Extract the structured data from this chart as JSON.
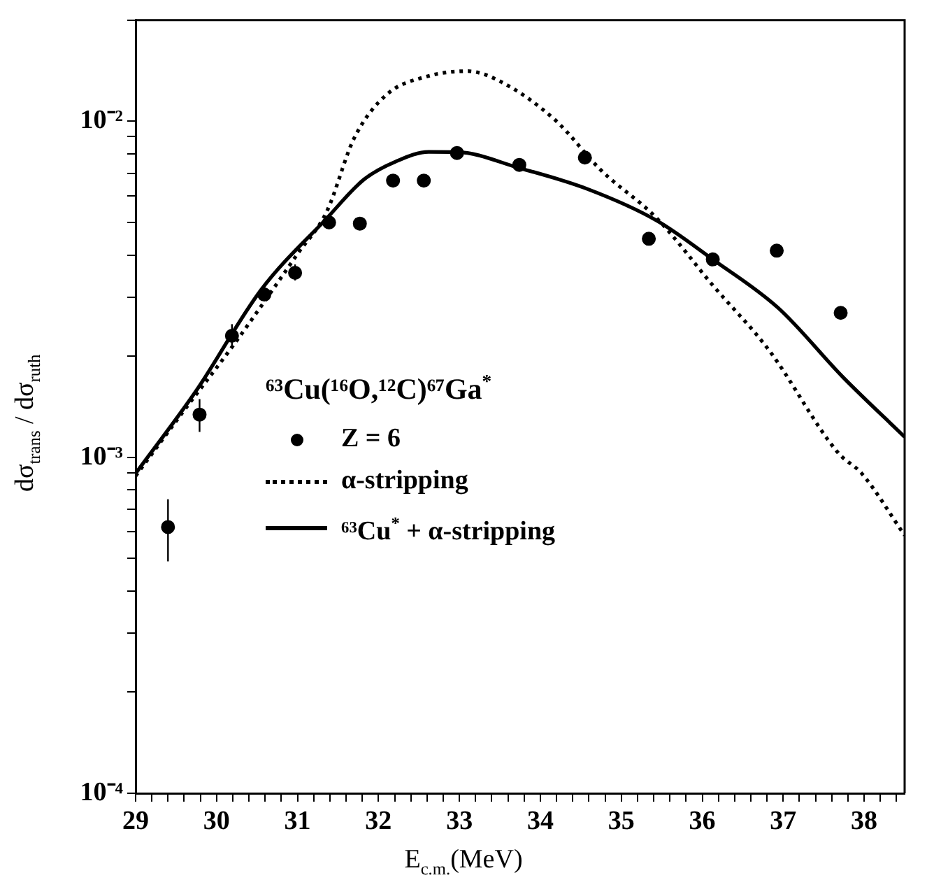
{
  "chart_data": {
    "type": "line",
    "xlabel": "E$_{c.m.}$(MeV)",
    "ylabel": "dσ$_{trans}$ / dσ$_{ruth}$",
    "legend_title": "⁶³Cu(¹⁶O,¹²C)⁶⁷Ga$^{*}$",
    "legend": "center",
    "grid": false,
    "log": "y",
    "xlim": [
      29,
      38.5
    ],
    "ylim": [
      0.0001,
      0.02
    ],
    "xticks": [
      29,
      {
        "value": 29.2,
        "label": null
      },
      {
        "value": 29.4,
        "label": null
      },
      {
        "value": 29.6,
        "label": null
      },
      {
        "value": 29.8,
        "label": null
      },
      30,
      {
        "value": 30.2,
        "label": null
      },
      {
        "value": 30.4,
        "label": null
      },
      {
        "value": 30.6,
        "label": null
      },
      {
        "value": 30.8,
        "label": null
      },
      31,
      {
        "value": 31.2,
        "label": null
      },
      {
        "value": 31.4,
        "label": null
      },
      {
        "value": 31.6,
        "label": null
      },
      {
        "value": 31.8,
        "label": null
      },
      32,
      {
        "value": 32.2,
        "label": null
      },
      {
        "value": 32.4,
        "label": null
      },
      {
        "value": 32.6,
        "label": null
      },
      {
        "value": 32.8,
        "label": null
      },
      33,
      {
        "value": 33.2,
        "label": null
      },
      {
        "value": 33.4,
        "label": null
      },
      {
        "value": 33.6,
        "label": null
      },
      {
        "value": 33.8,
        "label": null
      },
      34,
      {
        "value": 34.2,
        "label": null
      },
      {
        "value": 34.4,
        "label": null
      },
      {
        "value": 34.6,
        "label": null
      },
      {
        "value": 34.8,
        "label": null
      },
      35,
      {
        "value": 35.2,
        "label": null
      },
      {
        "value": 35.4,
        "label": null
      },
      {
        "value": 35.6,
        "label": null
      },
      {
        "value": 35.8,
        "label": null
      },
      36,
      {
        "value": 36.2,
        "label": null
      },
      {
        "value": 36.4,
        "label": null
      },
      {
        "value": 36.6,
        "label": null
      },
      {
        "value": 36.8,
        "label": null
      },
      37,
      {
        "value": 37.2,
        "label": null
      },
      {
        "value": 37.4,
        "label": null
      },
      {
        "value": 37.6,
        "label": null
      },
      {
        "value": 37.8,
        "label": null
      },
      38,
      {
        "value": 38.2,
        "label": null
      },
      {
        "value": 38.4,
        "label": null
      }
    ],
    "yticks": [
      {
        "value": 0.0001,
        "label": "10⁻⁴"
      },
      {
        "value": 0.0002,
        "label": null
      },
      {
        "value": 0.0003,
        "label": null
      },
      {
        "value": 0.0004,
        "label": null
      },
      {
        "value": 0.0005,
        "label": null
      },
      {
        "value": 0.0006,
        "label": null
      },
      {
        "value": 0.0007,
        "label": null
      },
      {
        "value": 0.0008,
        "label": null
      },
      {
        "value": 0.0009,
        "label": null
      },
      {
        "value": 0.001,
        "label": "10⁻³"
      },
      {
        "value": 0.002,
        "label": null
      },
      {
        "value": 0.003,
        "label": null
      },
      {
        "value": 0.004,
        "label": null
      },
      {
        "value": 0.005,
        "label": null
      },
      {
        "value": 0.006,
        "label": null
      },
      {
        "value": 0.007,
        "label": null
      },
      {
        "value": 0.008,
        "label": null
      },
      {
        "value": 0.009,
        "label": null
      },
      {
        "value": 0.01,
        "label": "10⁻²"
      },
      {
        "value": 0.02,
        "label": null
      }
    ],
    "series": [
      {
        "name": "Z = 6",
        "type": "scatter",
        "marker": "circle",
        "color": "#000000",
        "x": [
          29.4,
          29.79,
          30.19,
          30.59,
          30.97,
          31.39,
          31.77,
          32.18,
          32.56,
          32.97,
          33.74,
          34.55,
          35.34,
          36.13,
          36.92,
          37.71
        ],
        "values": [
          0.00062,
          0.00134,
          0.0023,
          0.00305,
          0.00354,
          0.005,
          0.00496,
          0.00666,
          0.00666,
          0.00805,
          0.00742,
          0.0078,
          0.00447,
          0.00388,
          0.00412,
          0.00269
        ],
        "errors": [
          [
            0.00049,
            0.00075
          ],
          [
            0.00119,
            0.00149
          ],
          [
            0.00216,
            0.00249
          ],
          [
            0.00292,
            0.00325
          ],
          [
            0.00336,
            0.00375
          ],
          null,
          null,
          null,
          null,
          null,
          null,
          null,
          null,
          null,
          null,
          null
        ]
      },
      {
        "name": "α-stripping",
        "line_style": "dotted",
        "color": "#000000",
        "x": [
          29,
          29.6,
          30.21,
          31.01,
          31.36,
          31.7,
          32.1,
          32.6,
          33.1,
          33.49,
          34.18,
          34.75,
          35.44,
          36.13,
          36.82,
          37.68,
          37.97,
          38.5
        ],
        "values": [
          0.00088,
          0.00138,
          0.00216,
          0.00406,
          0.00538,
          0.00891,
          0.012,
          0.0136,
          0.0141,
          0.0132,
          0.0101,
          0.00715,
          0.00514,
          0.00325,
          0.00209,
          0.00103,
          0.000895,
          0.000586
        ]
      },
      {
        "name": "⁶³Cu$^{*}$ + α-stripping",
        "line_style": "solid",
        "color": "#000000",
        "x": [
          29,
          29.75,
          30.55,
          31.36,
          31.82,
          32.22,
          32.62,
          32.97,
          33.74,
          34.58,
          35.44,
          36.13,
          36.94,
          37.74,
          38.5
        ],
        "values": [
          0.000895,
          0.00158,
          0.00315,
          0.00514,
          0.00671,
          0.0076,
          0.00811,
          0.0081,
          0.00726,
          0.00629,
          0.00506,
          0.00388,
          0.00278,
          0.00173,
          0.00115
        ]
      }
    ]
  }
}
